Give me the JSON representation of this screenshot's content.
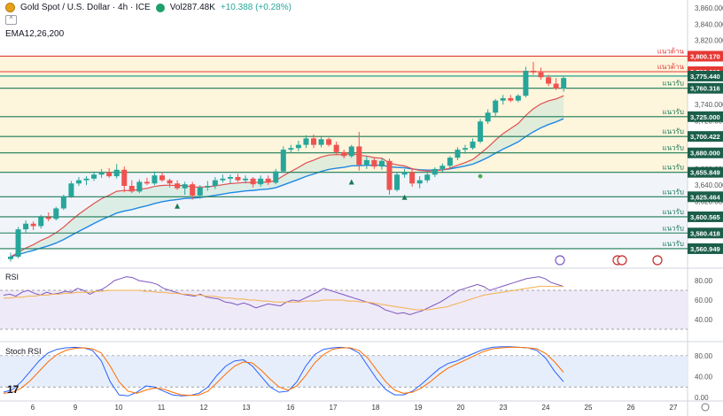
{
  "header": {
    "symbol": "Gold Spot / U.S. Dollar · 4h · ICE",
    "volume_label": "Vol",
    "volume_value": "287.48K",
    "change": "+10.388 (+0.28%)",
    "indicator": "EMA12,26,200"
  },
  "colors": {
    "up": "#26a69a",
    "down": "#ef5350",
    "ema_fast": "#e05050",
    "ema_slow": "#1e88e5",
    "resistance": "#e53935",
    "support": "#1b7a57",
    "rsi": "#7e57c2",
    "rsi_ma": "#f4b04d",
    "stoch_k": "#2962ff",
    "stoch_d": "#ff6d00"
  },
  "chart_data": [
    {
      "type": "candlestick",
      "title": "Gold Spot / U.S. Dollar · 4h · ICE",
      "ylim": [
        3540,
        3870
      ],
      "y_ticks": [
        3860,
        3840,
        3820,
        3800,
        3780,
        3760,
        3740,
        3720,
        3700,
        3680,
        3660,
        3640,
        3620,
        3600,
        3580,
        3560
      ],
      "x_ticks": [
        "6",
        "9",
        "10",
        "11",
        "12",
        "13",
        "16",
        "17",
        "18",
        "19",
        "20",
        "23",
        "24",
        "25",
        "26",
        "27"
      ],
      "candles": [
        [
          3548,
          3556,
          3545,
          3551
        ],
        [
          3551,
          3588,
          3549,
          3585
        ],
        [
          3585,
          3596,
          3580,
          3592
        ],
        [
          3592,
          3595,
          3584,
          3589
        ],
        [
          3589,
          3603,
          3586,
          3600
        ],
        [
          3600,
          3606,
          3595,
          3598
        ],
        [
          3598,
          3613,
          3596,
          3611
        ],
        [
          3611,
          3628,
          3609,
          3626
        ],
        [
          3626,
          3645,
          3624,
          3642
        ],
        [
          3642,
          3650,
          3639,
          3646
        ],
        [
          3646,
          3651,
          3640,
          3648
        ],
        [
          3648,
          3657,
          3645,
          3653
        ],
        [
          3653,
          3660,
          3649,
          3656
        ],
        [
          3656,
          3661,
          3649,
          3651
        ],
        [
          3651,
          3666,
          3648,
          3659
        ],
        [
          3659,
          3663,
          3631,
          3639
        ],
        [
          3639,
          3646,
          3630,
          3632
        ],
        [
          3632,
          3647,
          3630,
          3644
        ],
        [
          3644,
          3649,
          3640,
          3642
        ],
        [
          3642,
          3657,
          3640,
          3652
        ],
        [
          3652,
          3656,
          3644,
          3646
        ],
        [
          3646,
          3648,
          3637,
          3642
        ],
        [
          3642,
          3646,
          3634,
          3636
        ],
        [
          3636,
          3644,
          3628,
          3641
        ],
        [
          3641,
          3644,
          3622,
          3627
        ],
        [
          3627,
          3640,
          3623,
          3637
        ],
        [
          3637,
          3645,
          3633,
          3639
        ],
        [
          3639,
          3650,
          3635,
          3646
        ],
        [
          3646,
          3653,
          3643,
          3648
        ],
        [
          3648,
          3653,
          3642,
          3650
        ],
        [
          3650,
          3654,
          3644,
          3646
        ],
        [
          3646,
          3652,
          3642,
          3648
        ],
        [
          3648,
          3650,
          3637,
          3641
        ],
        [
          3641,
          3652,
          3638,
          3648
        ],
        [
          3648,
          3652,
          3640,
          3643
        ],
        [
          3643,
          3660,
          3641,
          3657
        ],
        [
          3657,
          3688,
          3655,
          3684
        ],
        [
          3684,
          3690,
          3680,
          3686
        ],
        [
          3686,
          3695,
          3682,
          3690
        ],
        [
          3690,
          3702,
          3686,
          3698
        ],
        [
          3698,
          3703,
          3686,
          3690
        ],
        [
          3690,
          3700,
          3687,
          3697
        ],
        [
          3697,
          3699,
          3688,
          3690
        ],
        [
          3690,
          3694,
          3678,
          3681
        ],
        [
          3681,
          3684,
          3673,
          3676
        ],
        [
          3676,
          3690,
          3674,
          3688
        ],
        [
          3688,
          3706,
          3658,
          3665
        ],
        [
          3665,
          3676,
          3660,
          3671
        ],
        [
          3671,
          3674,
          3660,
          3663
        ],
        [
          3663,
          3674,
          3659,
          3670
        ],
        [
          3670,
          3673,
          3628,
          3634
        ],
        [
          3634,
          3656,
          3632,
          3653
        ],
        [
          3653,
          3660,
          3649,
          3656
        ],
        [
          3656,
          3660,
          3638,
          3642
        ],
        [
          3642,
          3651,
          3636,
          3646
        ],
        [
          3646,
          3655,
          3643,
          3653
        ],
        [
          3653,
          3662,
          3650,
          3660
        ],
        [
          3660,
          3667,
          3656,
          3664
        ],
        [
          3664,
          3676,
          3661,
          3674
        ],
        [
          3674,
          3687,
          3671,
          3684
        ],
        [
          3684,
          3690,
          3679,
          3686
        ],
        [
          3686,
          3698,
          3684,
          3694
        ],
        [
          3694,
          3722,
          3692,
          3719
        ],
        [
          3719,
          3734,
          3716,
          3730
        ],
        [
          3730,
          3747,
          3726,
          3745
        ],
        [
          3745,
          3752,
          3740,
          3748
        ],
        [
          3748,
          3752,
          3743,
          3745
        ],
        [
          3745,
          3753,
          3743,
          3751
        ],
        [
          3751,
          3787,
          3749,
          3782
        ],
        [
          3782,
          3793,
          3777,
          3780
        ],
        [
          3780,
          3786,
          3771,
          3774
        ],
        [
          3774,
          3777,
          3763,
          3766
        ],
        [
          3766,
          3773,
          3758,
          3760
        ],
        [
          3760,
          3776,
          3756,
          3773
        ]
      ],
      "markers_up": [
        [
          22,
          3614
        ],
        [
          45,
          3644
        ],
        [
          52,
          3625
        ]
      ],
      "marker_dot": [
        [
          62,
          3651
        ]
      ],
      "levels": [
        {
          "label": "แนวต้าน",
          "price": "3,800.170",
          "value": 3800.17,
          "kind": "resistance"
        },
        {
          "label": "แนวต้าน",
          "price": "3,780.893",
          "value": 3780.893,
          "kind": "resistance"
        },
        {
          "label": "",
          "price": "3,775.440",
          "value": 3775.44,
          "kind": "current"
        },
        {
          "label": "แนวรับ",
          "price": "3,760.316",
          "value": 3760.316,
          "kind": "support"
        },
        {
          "label": "แนวรับ",
          "price": "3,725.000",
          "value": 3725.0,
          "kind": "support"
        },
        {
          "label": "แนวรับ",
          "price": "3,700.422",
          "value": 3700.422,
          "kind": "support"
        },
        {
          "label": "แนวรับ",
          "price": "3,680.000",
          "value": 3680.0,
          "kind": "support"
        },
        {
          "label": "แนวรับ",
          "price": "3,655.849",
          "value": 3655.849,
          "kind": "support"
        },
        {
          "label": "แนวรับ",
          "price": "3,625.464",
          "value": 3625.464,
          "kind": "support"
        },
        {
          "label": "แนวรับ",
          "price": "3,600.565",
          "value": 3600.565,
          "kind": "support"
        },
        {
          "label": "แนวรับ",
          "price": "3,580.418",
          "value": 3580.418,
          "kind": "support"
        },
        {
          "label": "แนวรับ",
          "price": "3,560.949",
          "value": 3560.949,
          "kind": "support"
        }
      ]
    },
    {
      "type": "line",
      "title": "RSI",
      "ylim": [
        20,
        90
      ],
      "y_ticks": [
        80,
        60,
        40
      ],
      "bands": [
        30,
        70
      ],
      "series": [
        {
          "values": [
            65,
            66,
            64,
            68,
            70,
            67,
            65,
            68,
            66,
            67,
            69,
            68,
            72,
            70,
            66,
            69,
            71,
            75,
            80,
            82,
            84,
            83,
            80,
            79,
            78,
            76,
            72,
            70,
            68,
            66,
            65,
            64,
            66,
            63,
            62,
            61,
            58,
            57,
            55,
            57,
            55,
            52,
            54,
            56,
            55,
            54,
            58,
            60,
            59,
            62,
            65,
            68,
            72,
            70,
            68,
            66,
            64,
            62,
            60,
            58,
            56,
            54,
            50,
            48,
            46,
            47,
            45,
            47,
            49,
            52,
            55,
            58,
            62,
            66,
            70,
            72,
            74,
            76,
            74,
            70,
            72,
            74,
            76,
            78,
            80,
            82,
            83,
            84,
            82,
            78,
            76,
            74
          ]
        },
        {
          "values": [
            62,
            62,
            63,
            63,
            64,
            64,
            65,
            65,
            66,
            66,
            67,
            67,
            68,
            68,
            68,
            69,
            69,
            70,
            70,
            70,
            70,
            70,
            70,
            69,
            69,
            68,
            68,
            67,
            67,
            66,
            66,
            65,
            65,
            64,
            64,
            63,
            62,
            62,
            61,
            61,
            60,
            60,
            59,
            59,
            58,
            58,
            58,
            58,
            58,
            59,
            59,
            59,
            60,
            60,
            60,
            60,
            59,
            59,
            58,
            58,
            57,
            56,
            55,
            54,
            53,
            52,
            51,
            50,
            50,
            50,
            51,
            52,
            53,
            55,
            57,
            59,
            61,
            63,
            65,
            66,
            67,
            68,
            69,
            70,
            71,
            72,
            73,
            74,
            74,
            74,
            74,
            74
          ]
        }
      ]
    },
    {
      "type": "line",
      "title": "Stoch RSI",
      "ylim": [
        -5,
        100
      ],
      "y_ticks": [
        80,
        40,
        0
      ],
      "bands": [
        20,
        80
      ],
      "series": [
        {
          "values": [
            10,
            15,
            30,
            50,
            70,
            85,
            92,
            95,
            96,
            95,
            90,
            70,
            30,
            5,
            3,
            10,
            22,
            20,
            12,
            5,
            3,
            4,
            8,
            20,
            42,
            60,
            70,
            72,
            60,
            40,
            20,
            10,
            12,
            30,
            60,
            82,
            92,
            95,
            96,
            94,
            85,
            60,
            35,
            15,
            5,
            5,
            12,
            25,
            40,
            55,
            65,
            70,
            78,
            85,
            92,
            96,
            97,
            97,
            96,
            95,
            90,
            75,
            50,
            30
          ]
        },
        {
          "values": [
            8,
            10,
            18,
            32,
            50,
            68,
            82,
            90,
            94,
            95,
            93,
            85,
            60,
            30,
            12,
            8,
            14,
            18,
            16,
            10,
            5,
            4,
            5,
            12,
            28,
            45,
            60,
            68,
            66,
            52,
            35,
            20,
            14,
            22,
            42,
            66,
            82,
            92,
            95,
            95,
            90,
            75,
            52,
            30,
            14,
            8,
            10,
            18,
            30,
            44,
            56,
            64,
            72,
            80,
            88,
            93,
            95,
            96,
            96,
            95,
            93,
            84,
            68,
            48
          ]
        }
      ]
    }
  ],
  "rsi_pane": {
    "title": "RSI"
  },
  "stoch_pane": {
    "title": "Stoch RSI"
  },
  "footer": {
    "logo": "17"
  }
}
